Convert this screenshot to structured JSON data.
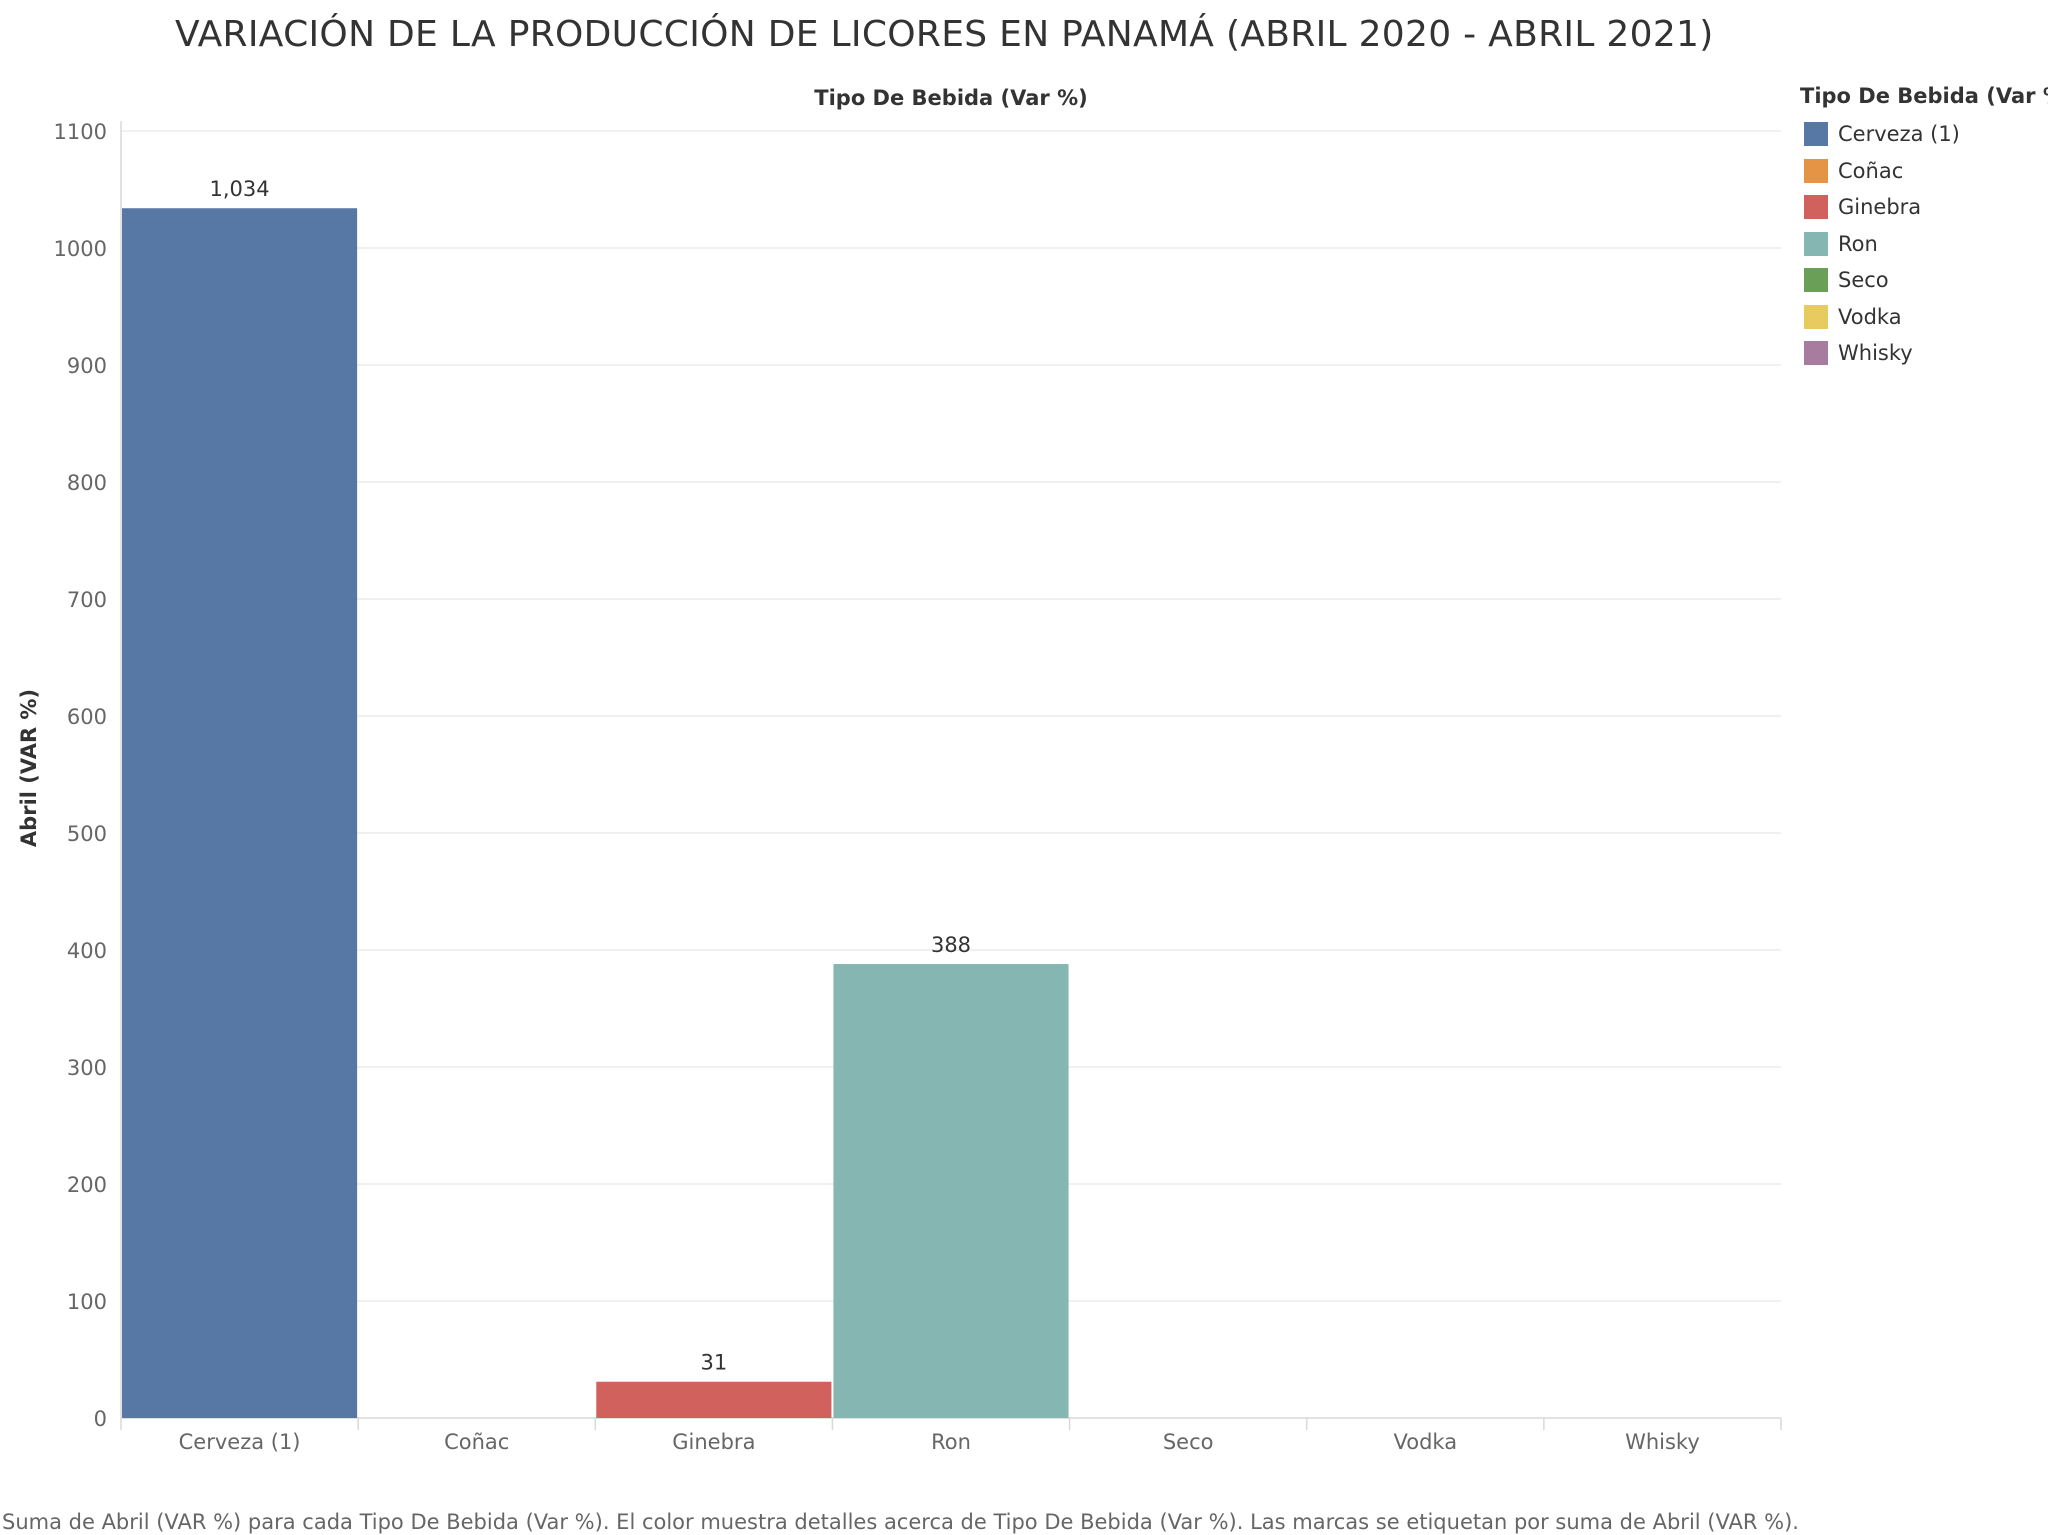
{
  "chart_data": {
    "type": "bar",
    "title": "VARIACIÓN DE LA PRODUCCIÓN DE LICORES EN PANAMÁ (ABRIL 2020 - ABRIL 2021)",
    "column_header": "Tipo De Bebida (Var %)",
    "xlabel": "",
    "ylabel": "Abril (VAR %)",
    "categories": [
      "Cerveza (1)",
      "Coñac",
      "Ginebra",
      "Ron",
      "Seco",
      "Vodka",
      "Whisky"
    ],
    "values": [
      1034,
      null,
      31,
      388,
      null,
      null,
      null
    ],
    "value_labels": [
      "1,034",
      "",
      "31",
      "388",
      "",
      "",
      ""
    ],
    "colors": [
      "#5778a4",
      "#e49444",
      "#d1615d",
      "#85b6b2",
      "#6a9f58",
      "#e7ca60",
      "#a87c9f"
    ],
    "ylim": [
      0,
      1100
    ],
    "yticks": [
      0,
      100,
      200,
      300,
      400,
      500,
      600,
      700,
      800,
      900,
      1000,
      1100
    ],
    "grid": true,
    "legend_position": "top-right",
    "legend": {
      "title": "Tipo De Bebida (Var %)",
      "items": [
        "Cerveza (1)",
        "Coñac",
        "Ginebra",
        "Ron",
        "Seco",
        "Vodka",
        "Whisky"
      ]
    },
    "footer": "Suma de Abril (VAR %) para cada Tipo De Bebida (Var %).  El color muestra detalles acerca de Tipo De Bebida (Var %).  Las marcas se etiquetan por suma de Abril (VAR %)."
  }
}
